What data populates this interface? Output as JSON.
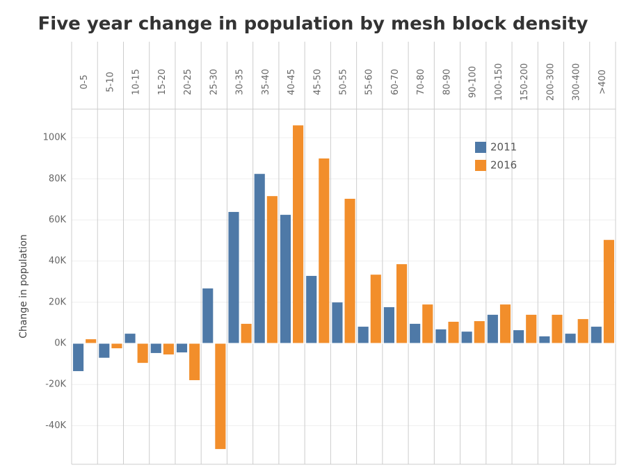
{
  "chart_data": {
    "type": "bar",
    "title": "Five year change in population by mesh block density",
    "y_label": "Change in population",
    "categories": [
      "0-5",
      "5-10",
      "10-15",
      "15-20",
      "20-25",
      "25-30",
      "30-35",
      "35-40",
      "40-45",
      "45-50",
      "50-55",
      "55-60",
      "60-70",
      "70-80",
      "80-90",
      "90-100",
      "100-150",
      "150-200",
      "200-300",
      "300-400",
      ">400"
    ],
    "series": [
      {
        "name": "2011",
        "color": "#4e79a7",
        "values": [
          -13500,
          -7000,
          4700,
          -4700,
          -4400,
          26700,
          63900,
          82400,
          62500,
          32800,
          19900,
          8100,
          17600,
          9500,
          6800,
          5700,
          13900,
          6400,
          3400,
          4700,
          8100
        ]
      },
      {
        "name": "2016",
        "color": "#f28e2b",
        "values": [
          2000,
          -2400,
          -9500,
          -5400,
          -17900,
          -51400,
          9500,
          71600,
          106000,
          89900,
          70300,
          33400,
          38500,
          18900,
          10500,
          10800,
          18900,
          13900,
          13900,
          11800,
          50300
        ]
      }
    ],
    "ylim": [
      -58800,
      113900
    ],
    "yticks": [
      {
        "value": -40000,
        "label": "-40K"
      },
      {
        "value": -20000,
        "label": "-20K"
      },
      {
        "value": 0,
        "label": "0K"
      },
      {
        "value": 20000,
        "label": "20K"
      },
      {
        "value": 40000,
        "label": "40K"
      },
      {
        "value": 60000,
        "label": "60K"
      },
      {
        "value": 80000,
        "label": "80K"
      },
      {
        "value": 100000,
        "label": "100K"
      }
    ],
    "grid": true,
    "legend": "upper right"
  }
}
